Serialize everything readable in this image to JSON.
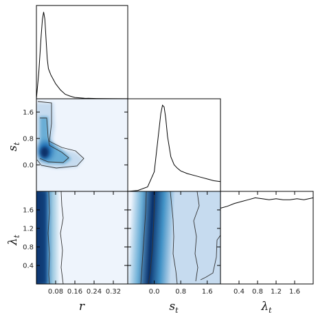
{
  "chart_data": {
    "type": "corner",
    "parameters": [
      {
        "symbol": "r",
        "sub": ""
      },
      {
        "symbol": "s",
        "sub": "t"
      },
      {
        "symbol": "λ",
        "sub": "t"
      }
    ],
    "ticks": {
      "r": [
        "0.08",
        "0.16",
        "0.24",
        "0.32"
      ],
      "s_t": [
        "0.0",
        "0.8",
        "1.6"
      ],
      "lambda_t": [
        "0.4",
        "0.8",
        "1.2",
        "1.6"
      ]
    },
    "ranges": {
      "r": [
        0.0,
        0.38
      ],
      "s_t": [
        -0.8,
        2.0
      ],
      "lambda_t": [
        0.0,
        2.0
      ]
    },
    "marginals": {
      "r": {
        "x": [
          0.0,
          0.01,
          0.02,
          0.025,
          0.03,
          0.035,
          0.04,
          0.045,
          0.05,
          0.06,
          0.07,
          0.08,
          0.1,
          0.12,
          0.14,
          0.16,
          0.2,
          0.25,
          0.3,
          0.38
        ],
        "y": [
          0.0,
          0.3,
          0.72,
          0.9,
          0.98,
          0.9,
          0.68,
          0.45,
          0.34,
          0.27,
          0.22,
          0.17,
          0.1,
          0.05,
          0.03,
          0.015,
          0.006,
          0.003,
          0.002,
          0.001
        ]
      },
      "s_t": {
        "x": [
          -0.8,
          -0.5,
          -0.2,
          0.0,
          0.1,
          0.2,
          0.25,
          0.3,
          0.35,
          0.4,
          0.5,
          0.6,
          0.7,
          0.8,
          1.0,
          1.2,
          1.4,
          1.6,
          1.8,
          2.0
        ],
        "y": [
          0.0,
          0.01,
          0.05,
          0.22,
          0.55,
          0.88,
          0.97,
          0.95,
          0.82,
          0.62,
          0.39,
          0.3,
          0.26,
          0.23,
          0.2,
          0.18,
          0.16,
          0.14,
          0.12,
          0.11
        ]
      },
      "lambda_t": {
        "x": [
          0.0,
          0.15,
          0.3,
          0.45,
          0.6,
          0.75,
          0.9,
          1.05,
          1.2,
          1.35,
          1.5,
          1.65,
          1.8,
          2.0
        ],
        "y": [
          0.81,
          0.83,
          0.86,
          0.88,
          0.9,
          0.92,
          0.91,
          0.9,
          0.91,
          0.9,
          0.9,
          0.91,
          0.9,
          0.92
        ]
      }
    },
    "joint_posteriors": [
      {
        "x_param": "r",
        "y_param": "s_t"
      },
      {
        "x_param": "r",
        "y_param": "lambda_t"
      },
      {
        "x_param": "s_t",
        "y_param": "lambda_t"
      }
    ],
    "colormap": [
      "#f0f5fd",
      "#c6dbef",
      "#6baed6",
      "#2171b5",
      "#08306b"
    ],
    "contour_color": "#333333"
  }
}
